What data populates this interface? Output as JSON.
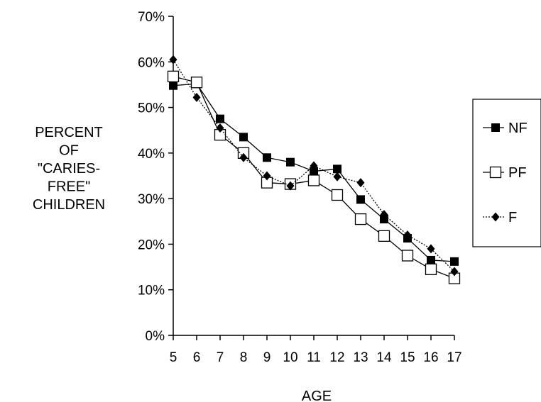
{
  "chart_data": {
    "type": "line",
    "title": "",
    "xlabel": "AGE",
    "ylabel_lines": [
      "PERCENT",
      "OF",
      "\"CARIES-",
      "FREE\"",
      "CHILDREN"
    ],
    "x": [
      5,
      6,
      7,
      8,
      9,
      10,
      11,
      12,
      13,
      14,
      15,
      16,
      17
    ],
    "xlim": [
      5,
      17
    ],
    "ylim": [
      0,
      70
    ],
    "y_ticks": [
      0,
      10,
      20,
      30,
      40,
      50,
      60,
      70
    ],
    "y_tick_labels": [
      "0%",
      "10%",
      "20%",
      "30%",
      "40%",
      "50%",
      "60%",
      "70%"
    ],
    "x_tick_labels": [
      "5",
      "6",
      "7",
      "8",
      "9",
      "10",
      "11",
      "12",
      "13",
      "14",
      "15",
      "16",
      "17"
    ],
    "grid": false,
    "legend_position": "right",
    "series": [
      {
        "name": "NF",
        "marker": "filled-square",
        "line_style": "solid",
        "values": [
          54.8,
          55.2,
          47.5,
          43.5,
          39.0,
          38.0,
          36.0,
          36.5,
          29.8,
          25.5,
          21.3,
          16.5,
          16.2
        ]
      },
      {
        "name": "PF",
        "marker": "open-square",
        "line_style": "solid",
        "values": [
          56.8,
          55.5,
          44.0,
          40.0,
          33.5,
          33.2,
          34.0,
          30.8,
          25.5,
          21.8,
          17.5,
          14.5,
          12.5
        ]
      },
      {
        "name": "F",
        "marker": "filled-diamond",
        "line_style": "dotted",
        "values": [
          60.5,
          52.2,
          45.5,
          39.0,
          35.0,
          32.8,
          37.2,
          34.8,
          33.5,
          26.5,
          22.0,
          19.0,
          14.0
        ]
      }
    ],
    "colors": {
      "line": "#000000",
      "background": "#ffffff"
    }
  }
}
